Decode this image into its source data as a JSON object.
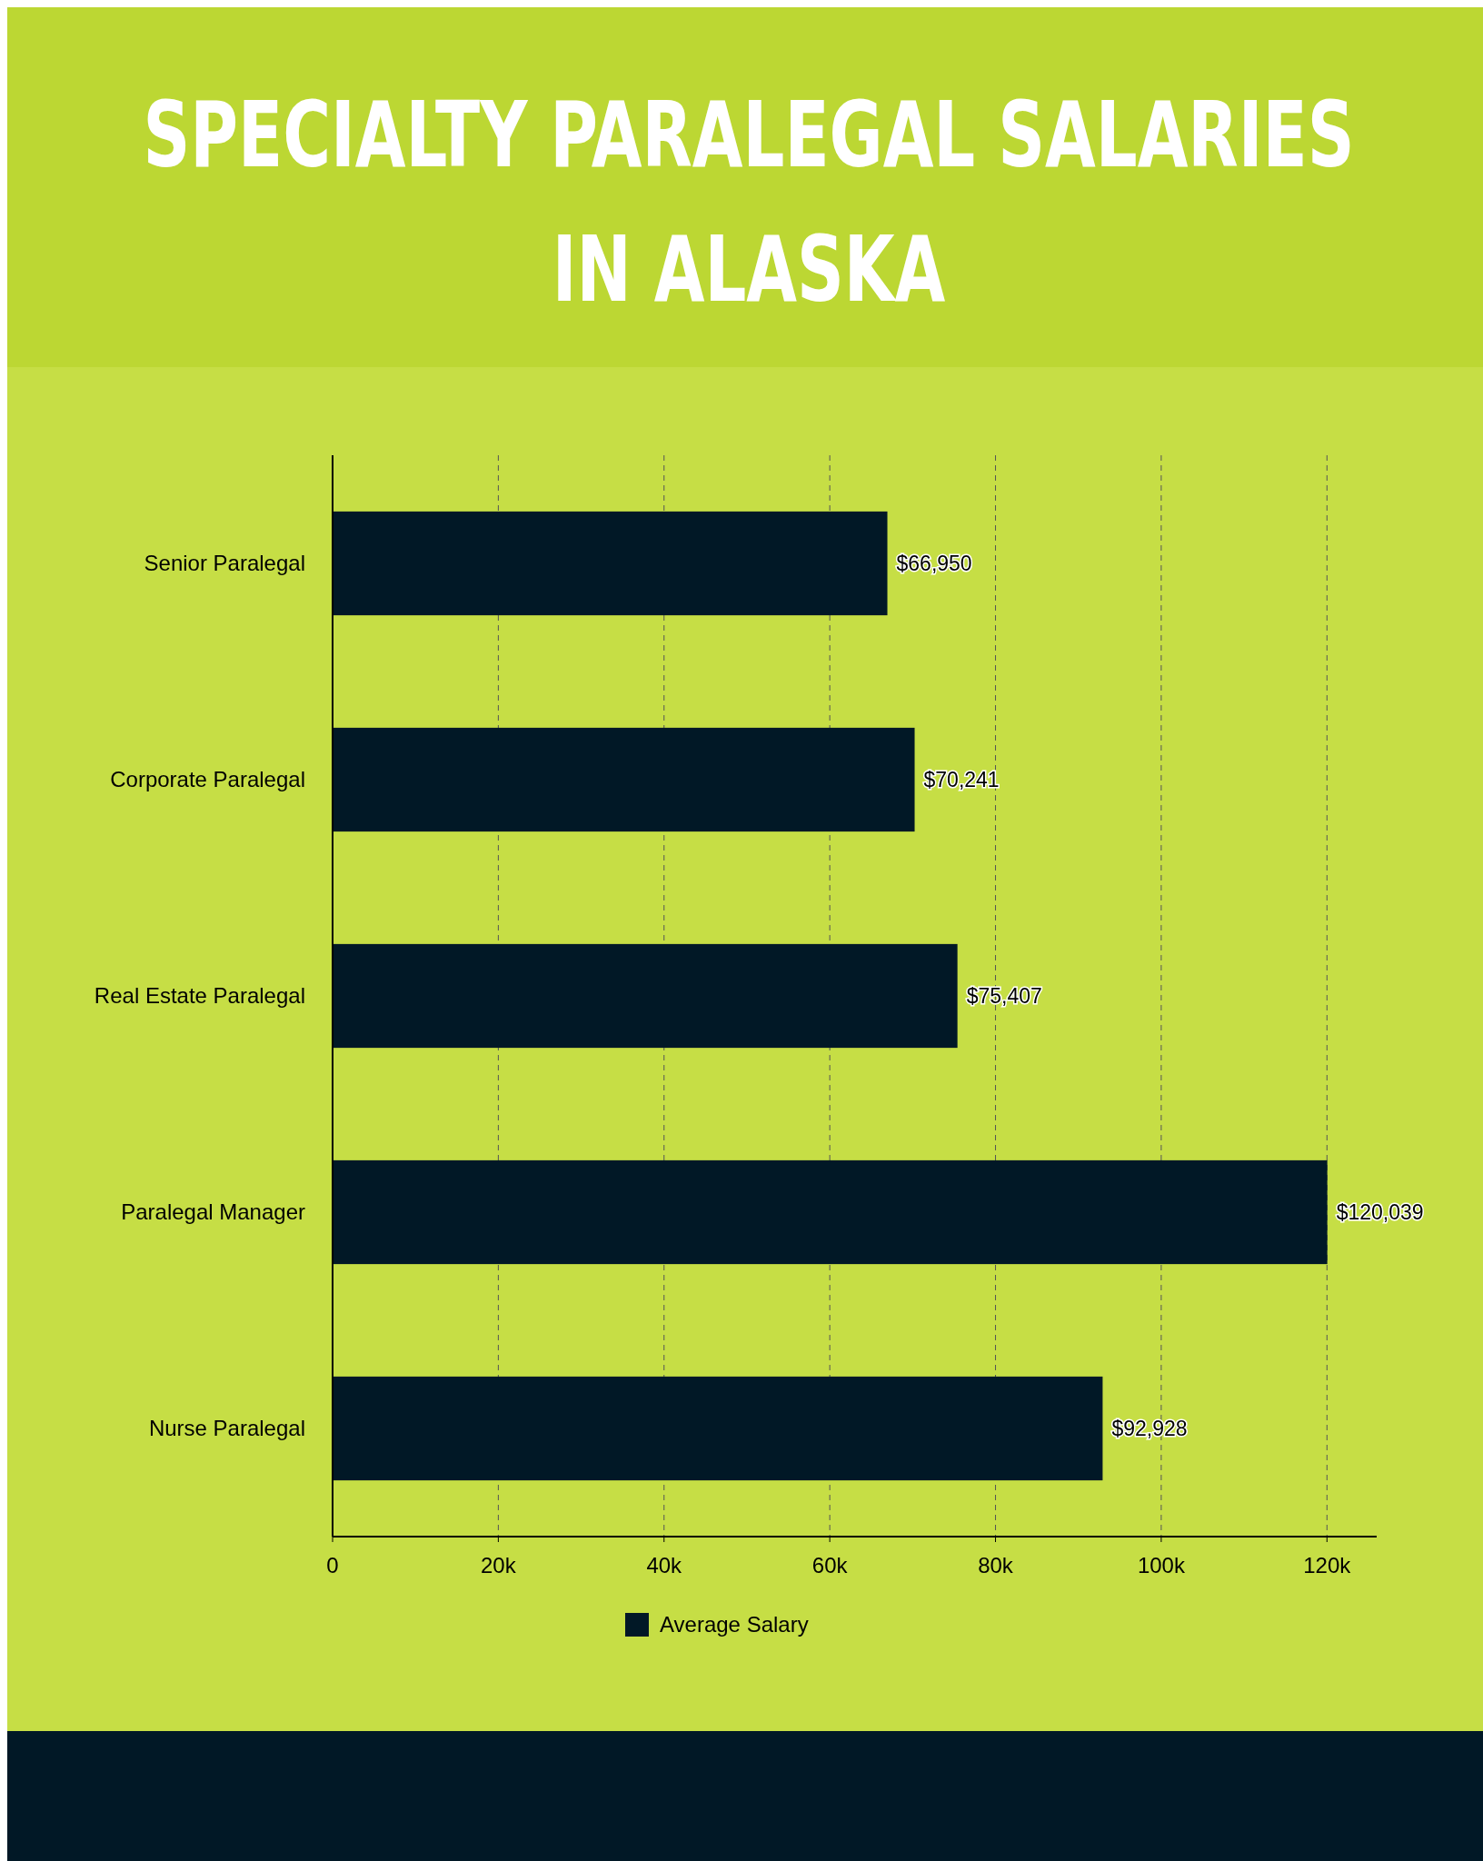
{
  "chart_data": {
    "type": "bar",
    "orientation": "horizontal",
    "title": "SPECIALTY PARALEGAL SALARIES IN ALASKA",
    "categories": [
      "Senior Paralegal",
      "Corporate Paralegal",
      "Real Estate Paralegal",
      "Paralegal Manager",
      "Nurse Paralegal"
    ],
    "series": [
      {
        "name": "Average Salary",
        "color": "#011826",
        "values": [
          66950,
          70241,
          75407,
          120039,
          92928
        ],
        "value_labels": [
          "$66,950",
          "$70,241",
          "$75,407",
          "$120,039",
          "$92,928"
        ]
      }
    ],
    "xlim": [
      0,
      126000
    ],
    "xticks": [
      0,
      {
        "value": 20000,
        "label": "20k"
      },
      {
        "value": 40000,
        "label": "40k"
      },
      {
        "value": 60000,
        "label": "60k"
      },
      {
        "value": 80000,
        "label": "80k"
      },
      {
        "value": 100000,
        "label": "100k"
      },
      {
        "value": 120000,
        "label": "120k"
      }
    ],
    "grid": "x",
    "legend": "bottom"
  }
}
